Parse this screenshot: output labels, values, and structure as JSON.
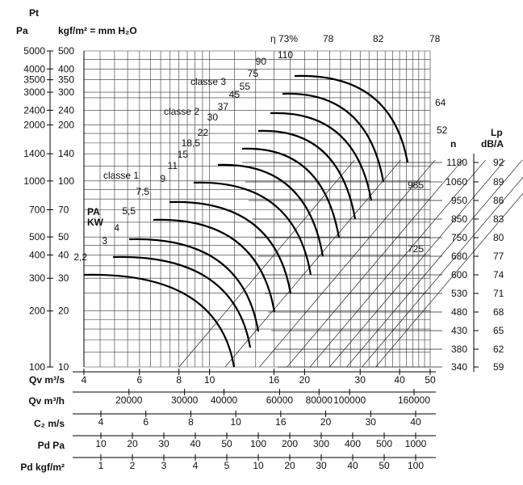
{
  "chart_data": {
    "type": "line",
    "left_axis": {
      "unit_top": "Pt",
      "unit_pa": "Pa",
      "unit_kgf": "kgf/m² = mm H₂O",
      "pa_ticks": [
        "5000",
        "4000",
        "3500",
        "3000",
        "2400",
        "2000",
        "1400",
        "1000",
        "700",
        "500",
        "400",
        "300",
        "200",
        "100"
      ],
      "kgf_ticks": [
        "500",
        "400",
        "350",
        "300",
        "240",
        "200",
        "140",
        "100",
        "70",
        "50",
        "40",
        "30",
        "20",
        "10"
      ],
      "pa_values": [
        5000,
        4000,
        3500,
        3000,
        2400,
        2000,
        1400,
        1000,
        700,
        500,
        400,
        300,
        200,
        100
      ],
      "kgf_values": [
        500,
        400,
        350,
        300,
        240,
        200,
        140,
        100,
        70,
        50,
        40,
        30,
        20,
        10
      ]
    },
    "x_axes": [
      {
        "label": "Qv m³/s",
        "ticks": [
          "4",
          "6",
          "8",
          "10",
          "16",
          "20",
          "30",
          "40",
          "50"
        ],
        "values": [
          4,
          6,
          8,
          10,
          16,
          20,
          30,
          40,
          50
        ]
      },
      {
        "label": "Qv m³/h",
        "ticks": [
          "20000",
          "30000",
          "40000",
          "60000",
          "80000",
          "100000",
          "160000"
        ],
        "values": [
          20000,
          30000,
          40000,
          60000,
          80000,
          100000,
          160000
        ]
      },
      {
        "label": "C₂ m/s",
        "ticks": [
          "4",
          "6",
          "8",
          "10",
          "16",
          "20",
          "30",
          "40"
        ]
      },
      {
        "label": "Pd Pa",
        "ticks": [
          "10",
          "20",
          "30",
          "40",
          "50",
          "100",
          "200",
          "300",
          "400",
          "500",
          "1000"
        ]
      },
      {
        "label": "Pd kgf/m²",
        "ticks": [
          "1",
          "2",
          "3",
          "4",
          "5",
          "10",
          "20",
          "30",
          "40",
          "50",
          "100"
        ]
      }
    ],
    "speed_axis": {
      "label": "n",
      "values": [
        "1180",
        "1060",
        "950",
        "850",
        "750",
        "680",
        "600",
        "530",
        "480",
        "430",
        "380",
        "340"
      ]
    },
    "noise_axis": {
      "label": "Lp",
      "unit": "dB/A",
      "values": [
        "92",
        "89",
        "86",
        "83",
        "80",
        "77",
        "74",
        "71",
        "68",
        "65",
        "62",
        "59"
      ]
    },
    "power_labels": {
      "pa": "PA",
      "kw": "KW",
      "values": [
        "110",
        "90",
        "75",
        "55",
        "45",
        "37",
        "30",
        "22",
        "18,5",
        "15",
        "11",
        "9",
        "7,5",
        "5,5",
        "4",
        "3",
        "2,2"
      ]
    },
    "classes": [
      "classe 1",
      "classe 2",
      "classe 3"
    ],
    "efficiency_labels": [
      "η 73%",
      "78",
      "82",
      "78",
      "64",
      "52"
    ],
    "speed_annotations": [
      "985",
      "725"
    ]
  }
}
